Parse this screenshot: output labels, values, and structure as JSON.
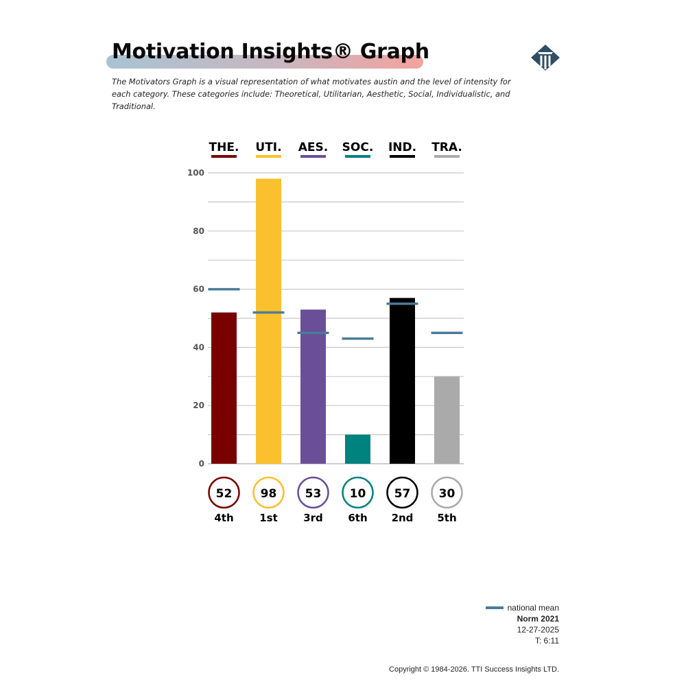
{
  "header": {
    "title": "Motivation Insights® Graph",
    "description": "The Motivators Graph is a visual representation of what motivates austin and the level of intensity for each category.  These categories include: Theoretical, Utilitarian, Aesthetic, Social, Individualistic, and Traditional."
  },
  "colors": {
    "title_band_start": "#a9c3d3",
    "title_band_end": "#f2a39f",
    "national_mean": "#4a7c99",
    "logo": "#2e4f63"
  },
  "chart_data": {
    "type": "bar",
    "categories": [
      "THE.",
      "UTI.",
      "AES.",
      "SOC.",
      "IND.",
      "TRA."
    ],
    "values": [
      52,
      98,
      53,
      10,
      57,
      30
    ],
    "national_mean": [
      60,
      52,
      45,
      43,
      55,
      45
    ],
    "ranks": [
      "4th",
      "1st",
      "3rd",
      "6th",
      "2nd",
      "5th"
    ],
    "colors": [
      "#7a0000",
      "#fbc02d",
      "#6a4f98",
      "#00827f",
      "#000000",
      "#aaaaaa"
    ],
    "ylim": [
      0,
      100
    ],
    "yticks": [
      0,
      20,
      40,
      60,
      80,
      100
    ],
    "grid": true
  },
  "legend": {
    "mean_label": "national mean",
    "norm": "Norm 2021",
    "date": "12-27-2025",
    "time": "T: 6:11"
  },
  "footer": {
    "copyright": "Copyright © 1984-2026. TTI Success Insights LTD."
  }
}
